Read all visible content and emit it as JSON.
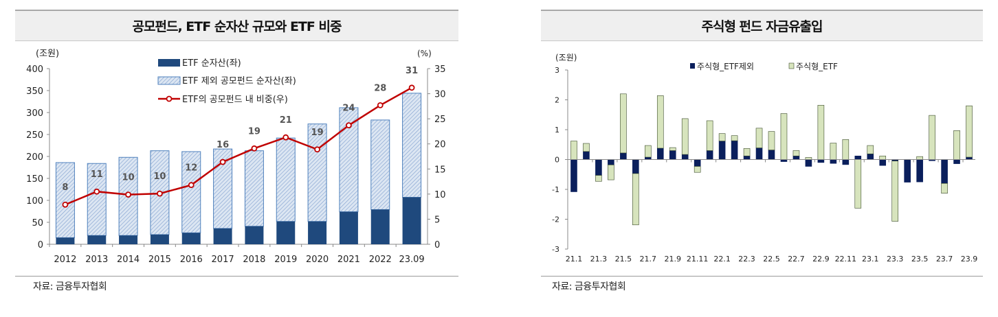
{
  "colors": {
    "etf": "#1f497d",
    "other_fill": "#dce6f2",
    "other_stroke": "#4f81bd",
    "line": "#c00000",
    "excl_etf": "#0a1f5c",
    "etf_equity": "#d7e4bd"
  },
  "chart_data": [
    {
      "type": "bar",
      "title": "공모펀드, ETF 순자산 규모와 ETF 비중",
      "source": "자료: 금융투자협회",
      "ylabel_left": "(조원)",
      "ylabel_right": "(%)",
      "ylim_left": [
        0,
        400
      ],
      "ylim_right": [
        0,
        35
      ],
      "yticks_left": [
        0,
        50,
        100,
        150,
        200,
        250,
        300,
        350,
        400
      ],
      "yticks_right": [
        0,
        5,
        10,
        15,
        20,
        25,
        30,
        35
      ],
      "categories": [
        "2012",
        "2013",
        "2014",
        "2015",
        "2016",
        "2017",
        "2018",
        "2019",
        "2020",
        "2021",
        "2022",
        "23.09"
      ],
      "series": [
        {
          "name": "ETF 순자산(좌)",
          "kind": "stacked-bar",
          "values": [
            15,
            20,
            20,
            22,
            26,
            36,
            41,
            52,
            52,
            74,
            79,
            107
          ]
        },
        {
          "name": "ETF 제외 공모펀드 순자산(좌)",
          "kind": "stacked-bar",
          "values": [
            171,
            164,
            178,
            191,
            185,
            181,
            172,
            190,
            222,
            237,
            204,
            237
          ]
        },
        {
          "name": "ETF의 공모펀드 내 비중(우)",
          "kind": "line",
          "axis": "right",
          "values": [
            7.9,
            10.5,
            9.9,
            10.1,
            11.8,
            16.4,
            19.1,
            21.3,
            18.9,
            23.7,
            27.7,
            31.2
          ],
          "labels": [
            "8",
            "11",
            "10",
            "10",
            "12",
            "16",
            "19",
            "21",
            "19",
            "24",
            "28",
            "31"
          ]
        }
      ],
      "legend": "top-center"
    },
    {
      "type": "bar",
      "title": "주식형 펀드 자금유출입",
      "source": "자료: 금융투자협회",
      "ylabel": "(조원)",
      "ylim": [
        -3,
        3
      ],
      "yticks": [
        -3,
        -2,
        -1,
        0,
        1,
        2,
        3
      ],
      "categories": [
        "21.1",
        "21.2",
        "21.3",
        "21.4",
        "21.5",
        "21.6",
        "21.7",
        "21.8",
        "21.9",
        "21.10",
        "21.11",
        "21.12",
        "22.1",
        "22.2",
        "22.3",
        "22.4",
        "22.5",
        "22.6",
        "22.7",
        "22.8",
        "22.9",
        "22.10",
        "22.11",
        "22.12",
        "23.1",
        "23.2",
        "23.3",
        "23.4",
        "23.5",
        "23.6",
        "23.7",
        "23.8",
        "23.9"
      ],
      "xtick_labels": [
        "21.1",
        "21.3",
        "21.5",
        "21.7",
        "21.9",
        "21.11",
        "22.1",
        "22.3",
        "22.5",
        "22.7",
        "22.9",
        "22.11",
        "23.1",
        "23.3",
        "23.5",
        "23.7",
        "23.9"
      ],
      "series": [
        {
          "name": "주식형_ETF제외",
          "values": [
            -1.08,
            0.27,
            -0.53,
            -0.18,
            0.22,
            -0.47,
            0.08,
            0.38,
            0.3,
            0.17,
            -0.23,
            0.3,
            0.62,
            0.63,
            0.12,
            0.39,
            0.32,
            -0.07,
            0.12,
            -0.23,
            -0.1,
            -0.13,
            -0.17,
            0.12,
            0.19,
            -0.2,
            -0.05,
            -0.76,
            -0.75,
            -0.04,
            -0.8,
            -0.14,
            0.08
          ]
        },
        {
          "name": "주식형_ETF",
          "values": [
            0.62,
            0.27,
            -0.2,
            -0.5,
            1.98,
            -1.72,
            0.39,
            1.76,
            0.1,
            1.2,
            -0.2,
            1.0,
            0.25,
            0.17,
            0.25,
            0.66,
            0.62,
            1.54,
            0.18,
            0.07,
            1.82,
            0.55,
            0.67,
            -1.63,
            0.28,
            0.12,
            -2.02,
            0.0,
            0.1,
            1.48,
            -0.33,
            0.97,
            1.72
          ]
        }
      ],
      "legend": "top-center"
    }
  ]
}
